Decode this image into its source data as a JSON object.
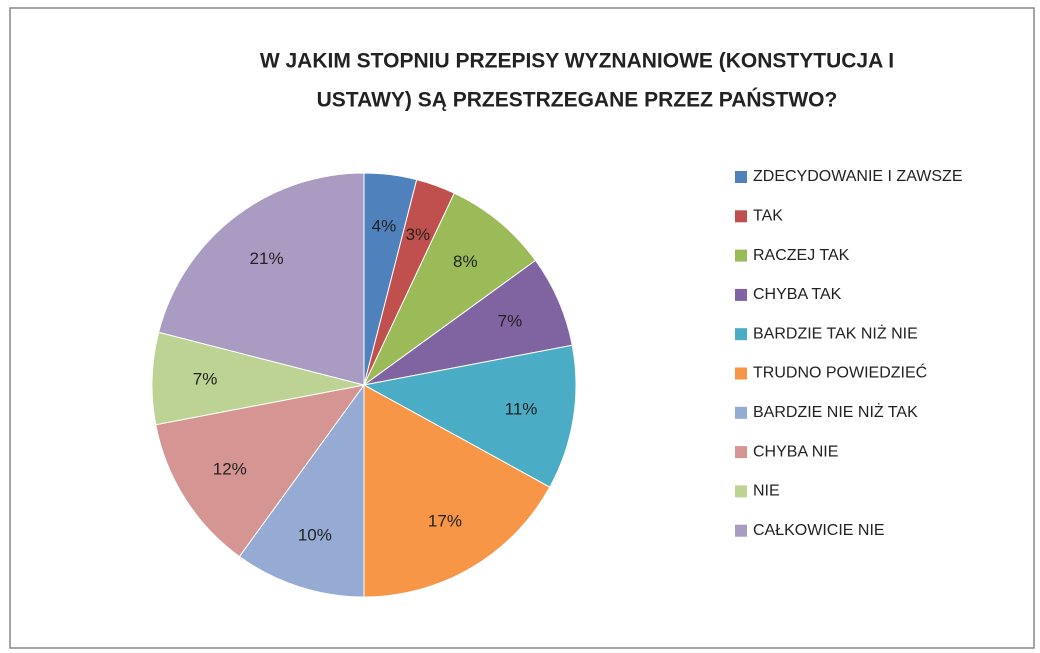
{
  "chart_data": {
    "type": "pie",
    "title": [
      "W JAKIM STOPNIU PRZEPISY WYZNANIOWE (KONSTYTUCJA I",
      "USTAWY) SĄ PRZESTRZEGANE PRZEZ PAŃSTWO?"
    ],
    "categories": [
      "ZDECYDOWANIE I ZAWSZE",
      "TAK",
      "RACZEJ TAK",
      "CHYBA TAK",
      "BARDZIE TAK NIŻ NIE",
      "TRUDNO POWIEDZIEĆ",
      "BARDZIE NIE NIŻ TAK",
      "CHYBA NIE",
      "NIE",
      "CAŁKOWICIE NIE"
    ],
    "values": [
      4,
      3,
      8,
      7,
      11,
      17,
      10,
      12,
      7,
      21
    ],
    "value_labels": [
      "4%",
      "3%",
      "8%",
      "7%",
      "11%",
      "17%",
      "10%",
      "12%",
      "7%",
      "21%"
    ],
    "colors": [
      "#4F81BD",
      "#C0504D",
      "#9BBB59",
      "#8064A2",
      "#4BACC6",
      "#F79646",
      "#95ABD3",
      "#D59593",
      "#BCD394",
      "#AA9BC2"
    ],
    "legend": "right"
  }
}
